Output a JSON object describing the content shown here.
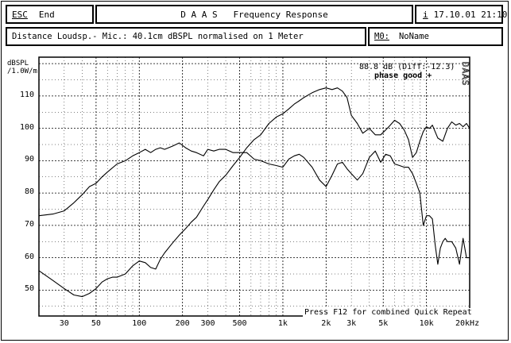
{
  "header": {
    "esc_key": "ESC",
    "esc_label": "End",
    "title": "D A A S   Frequency Response",
    "info_key": "i",
    "datetime": "17.10.01 21:10"
  },
  "subheader": {
    "description": "Distance Loudsp.- Mic.: 40.1cm dBSPL normalised on 1 Meter",
    "memory_key": "M0:",
    "memory_value": "NoName"
  },
  "chart_data": {
    "type": "line",
    "x_scale": "log",
    "xlim": [
      20,
      20000
    ],
    "ylim": [
      42,
      122
    ],
    "ylabel_line1": "dBSPL",
    "ylabel_line2": "/1.0W/m",
    "y_ticks": [
      50,
      60,
      70,
      80,
      90,
      100,
      110
    ],
    "x_ticks": [
      {
        "value": 30,
        "label": "30"
      },
      {
        "value": 50,
        "label": "50"
      },
      {
        "value": 100,
        "label": "100"
      },
      {
        "value": 200,
        "label": "200"
      },
      {
        "value": 300,
        "label": "300"
      },
      {
        "value": 500,
        "label": "500"
      },
      {
        "value": 1000,
        "label": "1k"
      },
      {
        "value": 2000,
        "label": "2k"
      },
      {
        "value": 3000,
        "label": "3k"
      },
      {
        "value": 5000,
        "label": "5k"
      },
      {
        "value": 10000,
        "label": "10k"
      },
      {
        "value": 20000,
        "label": "20kHz"
      }
    ],
    "grid": true,
    "annotation_value": "88.8 dB (Diff:-12.3)",
    "annotation_status": "phase good +",
    "watermark": "DAAS",
    "footer_note": "Press F12 for combined Quick Repeat",
    "series": [
      {
        "values_x": [
          20,
          25,
          30,
          35,
          40,
          45,
          50,
          55,
          60,
          70,
          80,
          90,
          100,
          110,
          120,
          130,
          140,
          150,
          170,
          190,
          210,
          230,
          250,
          280,
          300,
          330,
          360,
          400,
          450,
          500,
          560,
          630,
          700,
          800,
          900,
          1000,
          1100,
          1200,
          1300,
          1400,
          1600,
          1800,
          2000,
          2200,
          2400,
          2600,
          2800,
          3000,
          3300,
          3600,
          4000,
          4400,
          4800,
          5200,
          5600,
          6000,
          6500,
          7000,
          7500,
          8000,
          8500,
          9000,
          9500,
          10000,
          10500,
          11000,
          11500,
          12000,
          12500,
          13000,
          13500,
          14000,
          15000,
          16000,
          17000,
          18000,
          19000,
          20000
        ],
        "values_y": [
          73,
          73.5,
          74.5,
          77,
          79.5,
          82,
          83,
          85,
          86.5,
          89,
          90,
          91.5,
          92.5,
          93.5,
          92.5,
          93.5,
          94,
          93.5,
          94.5,
          95.5,
          94,
          93,
          92.5,
          91.5,
          93.5,
          93,
          93.5,
          93.5,
          92.5,
          92.5,
          92.5,
          90.5,
          90,
          89,
          88.5,
          88,
          90.5,
          91.5,
          92,
          91,
          88,
          84,
          82,
          85.5,
          89,
          89.5,
          87.5,
          86,
          84,
          86,
          91,
          93,
          89.5,
          92,
          91.5,
          89,
          88.5,
          88,
          88,
          86,
          83,
          80,
          70,
          73,
          73,
          72,
          64,
          58,
          63,
          65,
          66,
          65,
          65,
          63,
          58,
          66,
          60,
          60
        ]
      },
      {
        "values_x": [
          20,
          25,
          30,
          35,
          40,
          45,
          50,
          55,
          60,
          65,
          70,
          80,
          90,
          100,
          110,
          120,
          130,
          140,
          150,
          170,
          190,
          210,
          230,
          250,
          280,
          300,
          330,
          360,
          400,
          450,
          500,
          560,
          630,
          700,
          800,
          900,
          1000,
          1100,
          1200,
          1300,
          1400,
          1600,
          1800,
          2000,
          2200,
          2400,
          2600,
          2800,
          3000,
          3300,
          3600,
          4000,
          4400,
          4800,
          5200,
          5600,
          6000,
          6500,
          7000,
          7500,
          8000,
          8500,
          9000,
          9500,
          10000,
          10500,
          11000,
          12000,
          13000,
          14000,
          15000,
          16000,
          17000,
          18000,
          19000,
          20000
        ],
        "values_y": [
          56,
          53,
          50.5,
          48.5,
          48,
          49,
          50.5,
          52.5,
          53.5,
          54,
          54,
          55,
          57.5,
          59,
          58.5,
          57,
          56.5,
          59.5,
          61.5,
          64.5,
          67,
          69,
          71,
          72.5,
          76,
          78,
          81,
          83.5,
          85.5,
          88.5,
          91,
          94,
          96.5,
          98,
          101.5,
          103.5,
          104.5,
          106,
          107.5,
          108.5,
          109.5,
          111,
          112,
          112.5,
          112,
          112.5,
          111.5,
          109.5,
          104,
          101.5,
          98.5,
          100,
          98,
          98,
          99.5,
          101,
          102.5,
          101.5,
          99.5,
          96.5,
          91,
          92.5,
          96,
          99,
          100.5,
          100,
          101,
          97,
          96,
          100,
          102,
          101,
          101.5,
          100.5,
          101.5,
          100
        ]
      }
    ]
  }
}
